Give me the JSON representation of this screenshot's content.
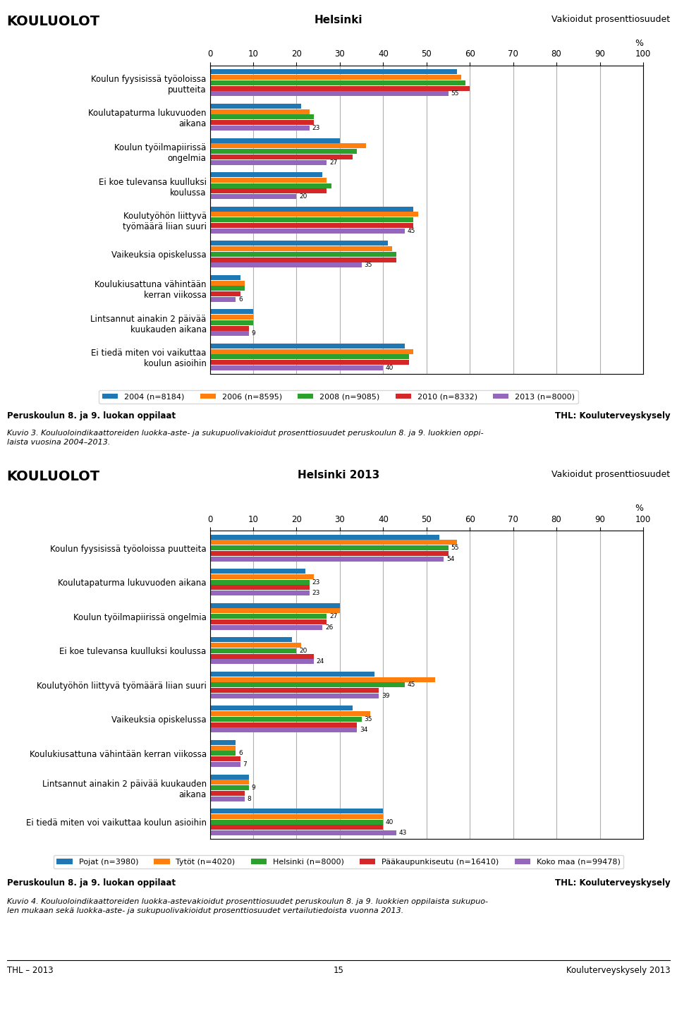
{
  "chart_data": [
    {
      "type": "bar",
      "orientation": "horizontal",
      "title": "Helsinki",
      "subtitle": "Vakioidut prosenttiosuudet",
      "x_label": "%",
      "categories": [
        "Koulun fyysisissä työoloissa\npuutteita",
        "Koulutapaturma lukuvuoden\naikana",
        "Koulun työilmapiirissä\nongelmia",
        "Ei koe tulevansa kuulluksi\nkoulussa",
        "Koulutyöhön liittyvä\ntyömäärä liian suuri",
        "Vaikeuksia opiskelussa",
        "Koulukiusattuna vähintään\nkerran viikossa",
        "Lintsannut ainakin 2 päivää\nkuukauden aikana",
        "Ei tiedä miten voi vaikuttaa\nkoulun asioihin"
      ],
      "series": [
        {
          "name": "2004 (n=8184)",
          "values": [
            57,
            21,
            30,
            26,
            47,
            41,
            7,
            10,
            45
          ]
        },
        {
          "name": "2006 (n=8595)",
          "values": [
            58,
            23,
            36,
            27,
            48,
            42,
            8,
            10,
            47
          ]
        },
        {
          "name": "2008 (n=9085)",
          "values": [
            59,
            24,
            34,
            28,
            47,
            43,
            8,
            10,
            46
          ]
        },
        {
          "name": "2010 (n=8332)",
          "values": [
            60,
            24,
            33,
            27,
            47,
            43,
            7,
            9,
            46
          ]
        },
        {
          "name": "2013 (n=8000)",
          "values": [
            55,
            23,
            27,
            20,
            45,
            35,
            6,
            9,
            40
          ],
          "data_labels": true
        }
      ],
      "xlim": [
        0,
        100
      ],
      "xticks": [
        0,
        10,
        20,
        30,
        40,
        50,
        60,
        70,
        80,
        90,
        100
      ],
      "grid": true,
      "legend": "upper center",
      "annotations": [
        "KOULUOLOT",
        "Peruskoulun 8. ja 9. luokan oppilaat",
        "THL: Kouluterveyskysely",
        "Kuvio 3. Kouluoloindikaattoreiden luokka-aste- ja sukupuolivakioidut prosenttiosuudet peruskoulun 8. ja 9. luokkien oppi-\nlaista vuosina 2004–2013."
      ]
    },
    {
      "type": "bar",
      "orientation": "horizontal",
      "title": "Helsinki 2013",
      "subtitle": "Vakioidut prosenttiosuudet",
      "x_label": "%",
      "categories": [
        "Koulun fyysisissä työoloissa puutteita",
        "Koulutapaturma lukuvuoden aikana",
        "Koulun työilmapiirissä ongelmia",
        "Ei koe tulevansa kuulluksi koulussa",
        "Koulutyöhön liittyvä työmäärä liian suuri",
        "Vaikeuksia opiskelussa",
        "Koulukiusattuna vähintään kerran viikossa",
        "Lintsannut ainakin 2 päivää kuukauden\naikana",
        "Ei tiedä miten voi vaikuttaa koulun asioihin"
      ],
      "series": [
        {
          "name": "Pojat (n=3980)",
          "values": [
            53,
            22,
            30,
            19,
            38,
            33,
            6,
            9,
            40
          ]
        },
        {
          "name": "Tytöt (n=4020)",
          "values": [
            57,
            24,
            30,
            21,
            52,
            37,
            6,
            9,
            40
          ]
        },
        {
          "name": "Helsinki (n=8000)",
          "values": [
            55,
            23,
            27,
            20,
            45,
            35,
            6,
            9,
            40
          ],
          "data_labels": true
        },
        {
          "name": "Pääkaupunkiseutu (n=16410)",
          "values": [
            55,
            23,
            27,
            24,
            39,
            34,
            7,
            8,
            40
          ]
        },
        {
          "name": "Koko maa (n=99478)",
          "values": [
            54,
            23,
            26,
            24,
            39,
            34,
            7,
            8,
            43
          ],
          "data_labels": true
        }
      ],
      "xlim": [
        0,
        100
      ],
      "xticks": [
        0,
        10,
        20,
        30,
        40,
        50,
        60,
        70,
        80,
        90,
        100
      ],
      "grid": true,
      "legend": "upper center",
      "annotations": [
        "KOULUOLOT",
        "Peruskoulun 8. ja 9. luokan oppilaat",
        "THL: Kouluterveyskysely",
        "Kuvio 4. Kouluoloindikaattoreiden luokka-astevakioidut prosenttiosuudet peruskoulun 8. ja 9. luokkien oppilaista sukupuo-\nlen mukaan sekä luokka-aste- ja sukupuolivakioidut prosenttiosuudet vertailutiedoista vuonna 2013.",
        "THL – 2013",
        "15",
        "Kouluterveyskysely 2013"
      ]
    }
  ]
}
